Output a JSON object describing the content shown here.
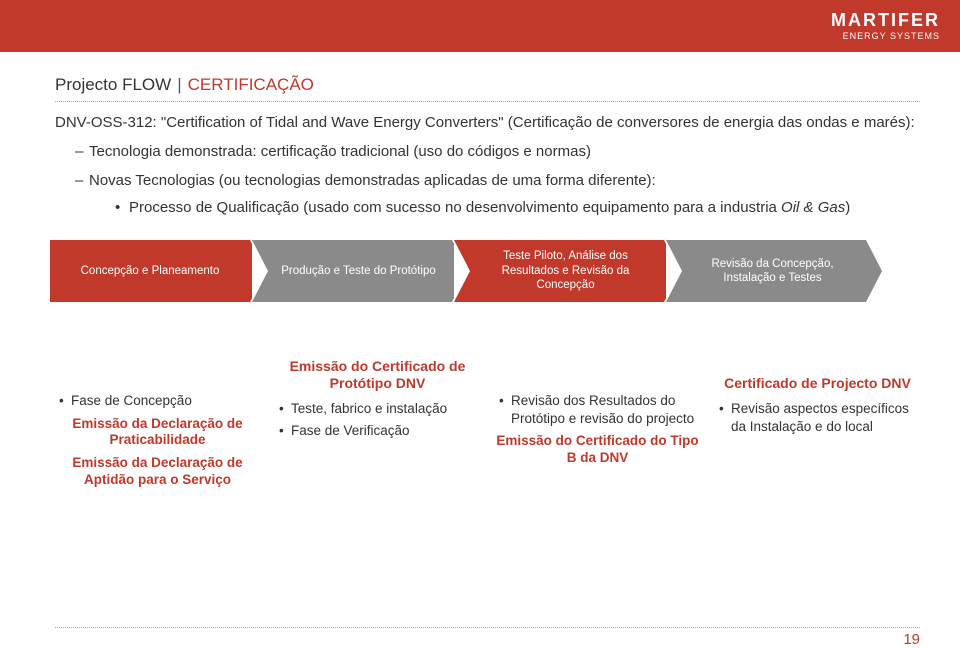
{
  "brand": {
    "name": "MARTIFER",
    "sub": "ENERGY SYSTEMS"
  },
  "title": {
    "main": "Projecto FLOW",
    "sub": "CERTIFICAÇÃO"
  },
  "intro": "DNV-OSS-312: \"Certification of Tidal and Wave Energy Converters\" (Certificação de conversores de energia das ondas e marés):",
  "bullets": {
    "b1": "Tecnologia demonstrada: certificação tradicional (uso do códigos e normas)",
    "b2": "Novas Tecnologias (ou tecnologias demonstradas aplicadas de uma forma diferente):",
    "b3_prefix": "Processo de Qualificação (usado com sucesso no desenvolvimento equipamento para a industria ",
    "b3_italic": "Oil & Gas",
    "b3_suffix": ")"
  },
  "chevrons": {
    "c1": "Concepção e Planeamento",
    "c2": "Produção e Teste do Protótipo",
    "c3": "Teste Piloto, Análise dos Resultados e Revisão da Concepção",
    "c4": "Revisão da Concepção, Instalação e Testes"
  },
  "cards": {
    "col1": {
      "b1": "Fase de Concepção",
      "r1": "Emissão da Declaração de Praticabilidade",
      "r2": "Emissão da Declaração de Aptidão para o Serviço"
    },
    "col2": {
      "title": "Emissão do Certificado de Protótipo DNV",
      "b1": "Teste, fabrico e instalação",
      "b2": "Fase de Verificação"
    },
    "col3": {
      "b1": "Revisão dos Resultados do Protótipo e revisão do projecto",
      "r1": "Emissão do Certificado do Tipo B da DNV"
    },
    "col4": {
      "title": "Certificado de Projecto DNV",
      "b1": "Revisão aspectos específicos da Instalação e do local"
    }
  },
  "page": "19",
  "colors": {
    "red": "#c0392b",
    "gray": "#8a8a8a"
  }
}
